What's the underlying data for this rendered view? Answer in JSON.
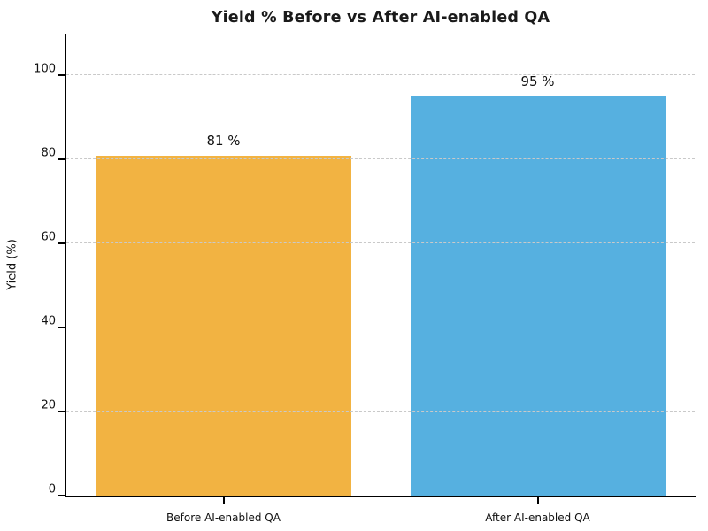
{
  "chart_data": {
    "type": "bar",
    "title": "Yield % Before vs After AI-enabled QA",
    "xlabel": "",
    "ylabel": "Yield (%)",
    "categories": [
      "Before AI-enabled QA",
      "After AI-enabled QA"
    ],
    "values": [
      81,
      95
    ],
    "bar_value_labels": [
      "81 %",
      "95 %"
    ],
    "bar_colors": [
      "#F2B342",
      "#56B0E0"
    ],
    "ylim": [
      0,
      110
    ],
    "yticks": [
      0,
      20,
      40,
      60,
      80,
      100
    ],
    "grid": {
      "axis": "y",
      "style": "dashed",
      "color": "#c9c9c9",
      "drawn_over_bars": true
    },
    "legend": "none",
    "spines": [
      "left",
      "bottom"
    ],
    "background_color": "#ffffff",
    "text_color": "#111111"
  }
}
